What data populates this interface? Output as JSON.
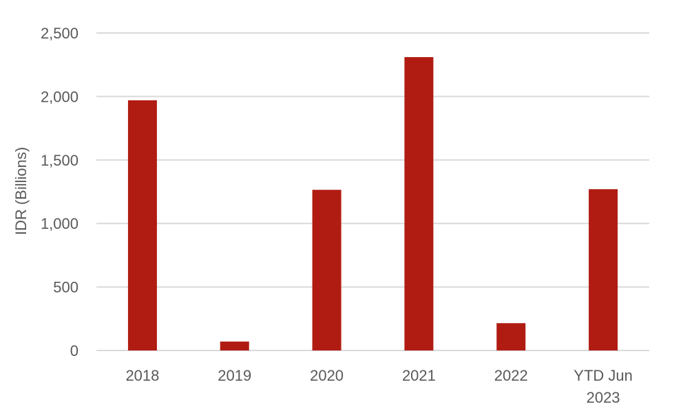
{
  "chart_data": {
    "type": "bar",
    "title": "",
    "xlabel": "",
    "ylabel": "IDR (Billions)",
    "categories": [
      [
        "2018"
      ],
      [
        "2019"
      ],
      [
        "2020"
      ],
      [
        "2021"
      ],
      [
        "2022"
      ],
      [
        "YTD Jun",
        "2023"
      ]
    ],
    "series": [
      {
        "values": [
          1970,
          70,
          1265,
          2310,
          215,
          1270
        ]
      }
    ],
    "ylim": [
      0,
      2500
    ],
    "yticks": [
      0,
      500,
      1000,
      1500,
      2000,
      2500
    ],
    "ytick_labels": [
      "0",
      "500",
      "1,000",
      "1,500",
      "2,000",
      "2,500"
    ],
    "grid": true,
    "legend": "none",
    "bar_color": "#B01C12"
  }
}
